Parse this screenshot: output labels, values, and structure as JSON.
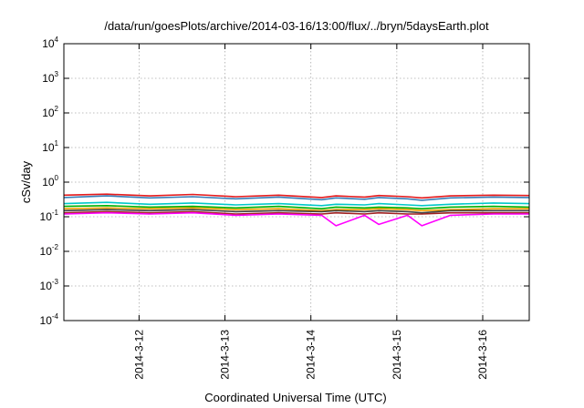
{
  "chart_data": {
    "type": "line",
    "title": "/data/run/goesPlots/archive/2014-03-16/13:00/flux/../bryn/5daysEarth.plot",
    "xlabel": "Coordinated Universal Time (UTC)",
    "ylabel": "cSv/day",
    "yscale": "log",
    "ylim": [
      0.0001,
      10000
    ],
    "xlim": [
      "2014-03-11 03:00",
      "2014-03-16 13:00"
    ],
    "grid": true,
    "x_ticks": [
      "2014-3-12",
      "2014-3-13",
      "2014-3-14",
      "2014-3-15",
      "2014-3-16"
    ],
    "y_ticks": [
      {
        "base": "10",
        "exp": "-4"
      },
      {
        "base": "10",
        "exp": "-3"
      },
      {
        "base": "10",
        "exp": "-2"
      },
      {
        "base": "10",
        "exp": "-1"
      },
      {
        "base": "10",
        "exp": "0"
      },
      {
        "base": "10",
        "exp": "1"
      },
      {
        "base": "10",
        "exp": "2"
      },
      {
        "base": "10",
        "exp": "3"
      },
      {
        "base": "10",
        "exp": "4"
      }
    ],
    "x": [
      "2014-03-11 03:00",
      "2014-03-11 15:00",
      "2014-03-12 03:00",
      "2014-03-12 15:00",
      "2014-03-13 03:00",
      "2014-03-13 15:00",
      "2014-03-14 03:00",
      "2014-03-14 07:00",
      "2014-03-14 15:00",
      "2014-03-14 19:00",
      "2014-03-15 03:00",
      "2014-03-15 07:00",
      "2014-03-15 15:00",
      "2014-03-16 03:00",
      "2014-03-16 13:00"
    ],
    "series": [
      {
        "color": "#e41a1c",
        "values": [
          0.42,
          0.45,
          0.4,
          0.44,
          0.38,
          0.42,
          0.36,
          0.4,
          0.37,
          0.41,
          0.38,
          0.35,
          0.4,
          0.42,
          0.41
        ]
      },
      {
        "color": "#377eb8",
        "values": [
          0.36,
          0.4,
          0.35,
          0.38,
          0.33,
          0.37,
          0.31,
          0.35,
          0.32,
          0.36,
          0.33,
          0.3,
          0.35,
          0.37,
          0.36
        ]
      },
      {
        "color": "#00c8c8",
        "values": [
          0.24,
          0.26,
          0.23,
          0.25,
          0.22,
          0.24,
          0.21,
          0.23,
          0.22,
          0.24,
          0.22,
          0.21,
          0.23,
          0.25,
          0.24
        ]
      },
      {
        "color": "#00b000",
        "values": [
          0.2,
          0.21,
          0.19,
          0.2,
          0.18,
          0.2,
          0.17,
          0.19,
          0.18,
          0.19,
          0.18,
          0.17,
          0.19,
          0.2,
          0.19
        ]
      },
      {
        "color": "#f0a000",
        "values": [
          0.17,
          0.18,
          0.17,
          0.18,
          0.16,
          0.17,
          0.15,
          0.16,
          0.16,
          0.17,
          0.16,
          0.15,
          0.16,
          0.17,
          0.17
        ]
      },
      {
        "color": "#404040",
        "values": [
          0.15,
          0.16,
          0.15,
          0.16,
          0.14,
          0.15,
          0.14,
          0.15,
          0.14,
          0.15,
          0.14,
          0.13,
          0.15,
          0.15,
          0.15
        ]
      },
      {
        "color": "#a02020",
        "values": [
          0.13,
          0.14,
          0.13,
          0.14,
          0.12,
          0.13,
          0.12,
          0.13,
          0.12,
          0.13,
          0.12,
          0.12,
          0.13,
          0.13,
          0.13
        ]
      },
      {
        "color": "#ff00ff",
        "values": [
          0.12,
          0.13,
          0.12,
          0.13,
          0.11,
          0.12,
          0.11,
          0.055,
          0.11,
          0.06,
          0.11,
          0.055,
          0.11,
          0.12,
          0.12
        ]
      }
    ]
  }
}
